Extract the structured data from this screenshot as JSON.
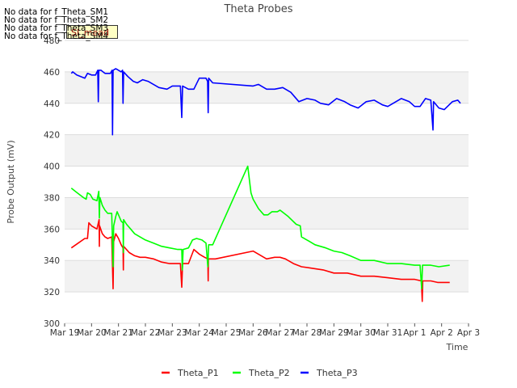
{
  "chart_data": {
    "type": "line",
    "title": "Theta Probes",
    "xlabel": "Time",
    "ylabel": "Probe Output (mV)",
    "ylim": [
      300,
      480
    ],
    "yticks": [
      300,
      320,
      340,
      360,
      380,
      400,
      420,
      440,
      460,
      480
    ],
    "xlim": [
      0,
      15
    ],
    "xticks": [
      {
        "t": 0,
        "label": "Mar 19"
      },
      {
        "t": 1,
        "label": "Mar 20"
      },
      {
        "t": 2,
        "label": "Mar 21"
      },
      {
        "t": 3,
        "label": "Mar 22"
      },
      {
        "t": 4,
        "label": "Mar 23"
      },
      {
        "t": 5,
        "label": "Mar 24"
      },
      {
        "t": 6,
        "label": "Mar 25"
      },
      {
        "t": 7,
        "label": "Mar 26"
      },
      {
        "t": 8,
        "label": "Mar 27"
      },
      {
        "t": 9,
        "label": "Mar 28"
      },
      {
        "t": 10,
        "label": "Mar 29"
      },
      {
        "t": 11,
        "label": "Mar 30"
      },
      {
        "t": 12,
        "label": "Mar 31"
      },
      {
        "t": 13,
        "label": "Apr 1"
      },
      {
        "t": 14,
        "label": "Apr 2"
      },
      {
        "t": 15,
        "label": "Apr 3"
      }
    ],
    "legend_position": "bottom-center",
    "series": [
      {
        "name": "Theta_P1",
        "color": "#ff0000",
        "points": [
          [
            0.25,
            348
          ],
          [
            0.5,
            351
          ],
          [
            0.75,
            354
          ],
          [
            0.85,
            354
          ],
          [
            0.9,
            364
          ],
          [
            1.0,
            362
          ],
          [
            1.1,
            361
          ],
          [
            1.2,
            360
          ],
          [
            1.28,
            366
          ],
          [
            1.29,
            349
          ],
          [
            1.3,
            362
          ],
          [
            1.4,
            357
          ],
          [
            1.5,
            355
          ],
          [
            1.6,
            354
          ],
          [
            1.75,
            355
          ],
          [
            1.8,
            322
          ],
          [
            1.82,
            352
          ],
          [
            1.9,
            357
          ],
          [
            2.0,
            354
          ],
          [
            2.1,
            350
          ],
          [
            2.17,
            348
          ],
          [
            2.18,
            334
          ],
          [
            2.19,
            349
          ],
          [
            2.4,
            345
          ],
          [
            2.6,
            343
          ],
          [
            2.8,
            342
          ],
          [
            3.0,
            342
          ],
          [
            3.3,
            341
          ],
          [
            3.6,
            339
          ],
          [
            3.9,
            338
          ],
          [
            4.3,
            338
          ],
          [
            4.35,
            323
          ],
          [
            4.38,
            338
          ],
          [
            4.6,
            338
          ],
          [
            4.8,
            347
          ],
          [
            5.0,
            344
          ],
          [
            5.2,
            342
          ],
          [
            5.32,
            341
          ],
          [
            5.33,
            327
          ],
          [
            5.34,
            341
          ],
          [
            5.6,
            341
          ],
          [
            7.0,
            346
          ],
          [
            7.5,
            341
          ],
          [
            7.8,
            342
          ],
          [
            8.0,
            342
          ],
          [
            8.2,
            341
          ],
          [
            8.5,
            338
          ],
          [
            8.8,
            336
          ],
          [
            9.2,
            335
          ],
          [
            9.6,
            334
          ],
          [
            10.0,
            332
          ],
          [
            10.5,
            332
          ],
          [
            11.0,
            330
          ],
          [
            11.5,
            330
          ],
          [
            12.0,
            329
          ],
          [
            12.5,
            328
          ],
          [
            13.0,
            328
          ],
          [
            13.25,
            327
          ],
          [
            13.28,
            314
          ],
          [
            13.3,
            327
          ],
          [
            13.6,
            327
          ],
          [
            13.85,
            326
          ],
          [
            14.3,
            326
          ]
        ]
      },
      {
        "name": "Theta_P2",
        "color": "#00ff00",
        "points": [
          [
            0.25,
            386
          ],
          [
            0.4,
            384
          ],
          [
            0.55,
            382
          ],
          [
            0.7,
            380
          ],
          [
            0.8,
            379
          ],
          [
            0.85,
            383
          ],
          [
            0.95,
            382
          ],
          [
            1.05,
            379
          ],
          [
            1.2,
            378
          ],
          [
            1.27,
            384
          ],
          [
            1.29,
            367
          ],
          [
            1.31,
            380
          ],
          [
            1.4,
            375
          ],
          [
            1.5,
            372
          ],
          [
            1.6,
            370
          ],
          [
            1.75,
            370
          ],
          [
            1.8,
            336
          ],
          [
            1.82,
            362
          ],
          [
            1.9,
            368
          ],
          [
            1.95,
            371
          ],
          [
            2.0,
            369
          ],
          [
            2.1,
            365
          ],
          [
            2.17,
            364
          ],
          [
            2.18,
            345
          ],
          [
            2.19,
            366
          ],
          [
            2.3,
            363
          ],
          [
            2.45,
            360
          ],
          [
            2.6,
            357
          ],
          [
            2.8,
            355
          ],
          [
            3.0,
            353
          ],
          [
            3.3,
            351
          ],
          [
            3.6,
            349
          ],
          [
            3.9,
            348
          ],
          [
            4.2,
            347
          ],
          [
            4.35,
            347
          ],
          [
            4.37,
            334
          ],
          [
            4.4,
            347
          ],
          [
            4.6,
            348
          ],
          [
            4.75,
            353
          ],
          [
            4.9,
            354
          ],
          [
            5.1,
            353
          ],
          [
            5.25,
            351
          ],
          [
            5.32,
            336
          ],
          [
            5.35,
            350
          ],
          [
            5.5,
            350
          ],
          [
            6.8,
            400
          ],
          [
            6.92,
            383
          ],
          [
            7.0,
            379
          ],
          [
            7.2,
            373
          ],
          [
            7.4,
            369
          ],
          [
            7.55,
            369
          ],
          [
            7.7,
            371
          ],
          [
            7.9,
            371
          ],
          [
            8.0,
            372
          ],
          [
            8.3,
            368
          ],
          [
            8.6,
            363
          ],
          [
            8.75,
            362
          ],
          [
            8.8,
            355
          ],
          [
            9.0,
            353
          ],
          [
            9.3,
            350
          ],
          [
            9.7,
            348
          ],
          [
            10.0,
            346
          ],
          [
            10.3,
            345
          ],
          [
            10.6,
            343
          ],
          [
            11.0,
            340
          ],
          [
            11.5,
            340
          ],
          [
            12.0,
            338
          ],
          [
            12.5,
            338
          ],
          [
            13.0,
            337
          ],
          [
            13.2,
            337
          ],
          [
            13.26,
            322
          ],
          [
            13.29,
            337
          ],
          [
            13.6,
            337
          ],
          [
            13.9,
            336
          ],
          [
            14.3,
            337
          ]
        ]
      },
      {
        "name": "Theta_P3",
        "color": "#0000ff",
        "points": [
          [
            0.25,
            459
          ],
          [
            0.3,
            460
          ],
          [
            0.45,
            458
          ],
          [
            0.6,
            457
          ],
          [
            0.75,
            456
          ],
          [
            0.85,
            459
          ],
          [
            1.0,
            458
          ],
          [
            1.15,
            458
          ],
          [
            1.23,
            461
          ],
          [
            1.25,
            441
          ],
          [
            1.27,
            461
          ],
          [
            1.35,
            461
          ],
          [
            1.5,
            459
          ],
          [
            1.7,
            459
          ],
          [
            1.76,
            461
          ],
          [
            1.78,
            420
          ],
          [
            1.8,
            461
          ],
          [
            1.9,
            462
          ],
          [
            2.0,
            461
          ],
          [
            2.1,
            460
          ],
          [
            2.15,
            461
          ],
          [
            2.17,
            440
          ],
          [
            2.19,
            460
          ],
          [
            2.35,
            457
          ],
          [
            2.55,
            454
          ],
          [
            2.7,
            453
          ],
          [
            2.9,
            455
          ],
          [
            3.1,
            454
          ],
          [
            3.3,
            452
          ],
          [
            3.5,
            450
          ],
          [
            3.8,
            449
          ],
          [
            4.0,
            451
          ],
          [
            4.3,
            451
          ],
          [
            4.35,
            431
          ],
          [
            4.38,
            451
          ],
          [
            4.6,
            449
          ],
          [
            4.8,
            449
          ],
          [
            5.0,
            456
          ],
          [
            5.25,
            456
          ],
          [
            5.31,
            454
          ],
          [
            5.33,
            434
          ],
          [
            5.35,
            456
          ],
          [
            5.5,
            453
          ],
          [
            7.0,
            451
          ],
          [
            7.2,
            452
          ],
          [
            7.5,
            449
          ],
          [
            7.8,
            449
          ],
          [
            8.1,
            450
          ],
          [
            8.4,
            447
          ],
          [
            8.7,
            441
          ],
          [
            9.0,
            443
          ],
          [
            9.3,
            442
          ],
          [
            9.5,
            440
          ],
          [
            9.8,
            439
          ],
          [
            10.1,
            443
          ],
          [
            10.4,
            441
          ],
          [
            10.6,
            439
          ],
          [
            10.9,
            437
          ],
          [
            11.2,
            441
          ],
          [
            11.5,
            442
          ],
          [
            11.8,
            439
          ],
          [
            12.0,
            438
          ],
          [
            12.2,
            440
          ],
          [
            12.5,
            443
          ],
          [
            12.8,
            441
          ],
          [
            13.0,
            438
          ],
          [
            13.2,
            438
          ],
          [
            13.4,
            443
          ],
          [
            13.6,
            442
          ],
          [
            13.68,
            423
          ],
          [
            13.7,
            441
          ],
          [
            13.9,
            437
          ],
          [
            14.1,
            436
          ],
          [
            14.4,
            441
          ],
          [
            14.6,
            442
          ],
          [
            14.7,
            440
          ]
        ]
      }
    ]
  },
  "overlay": {
    "nodata_lines": [
      "No data for f_Theta_SM1",
      "No data for f_Theta_SM2",
      "No data for f_Theta_SM3",
      "No data for f_Theta_SM4"
    ],
    "badge_text": "SI_mead"
  }
}
